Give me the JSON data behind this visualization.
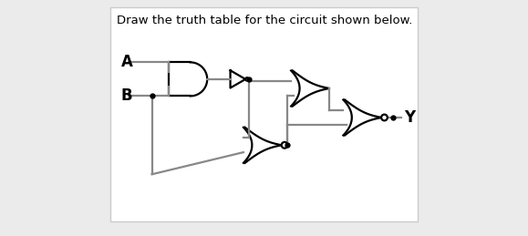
{
  "title": "Draw the truth table for the circuit shown below.",
  "title_fontsize": 9.5,
  "bg_color": "#ebebeb",
  "inner_bg": "#ffffff",
  "line_color": "#888888",
  "gate_color": "#000000",
  "text_color": "#000000",
  "label_A": "A",
  "label_B": "B",
  "label_Y": "Y",
  "label_fontsize": 12,
  "lw": 1.6
}
